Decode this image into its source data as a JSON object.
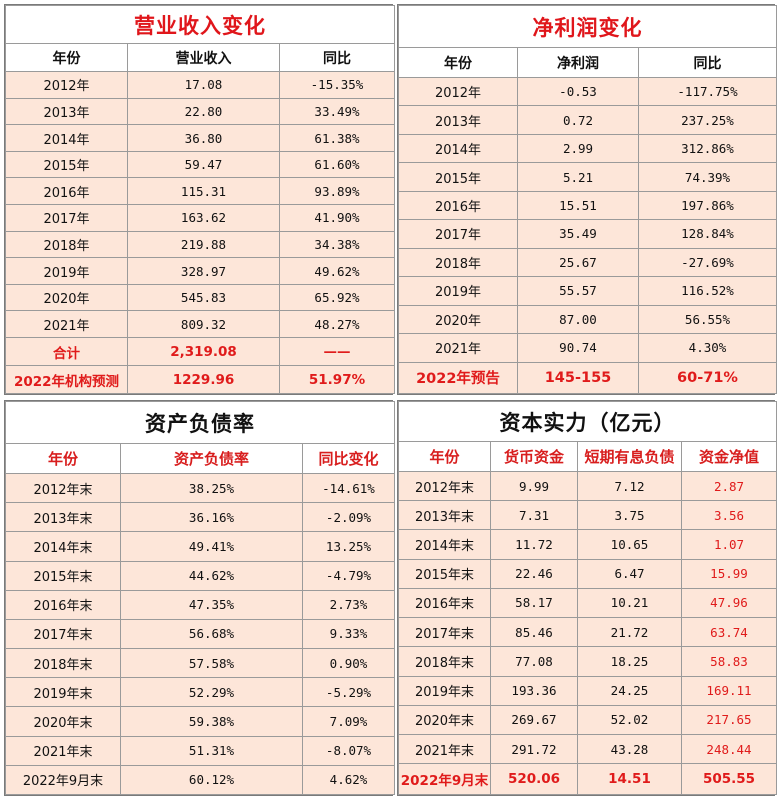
{
  "revenue": {
    "title": "营业收入变化",
    "headers": [
      "年份",
      "营业收入",
      "同比"
    ],
    "rows": [
      [
        "2012年",
        "17.08",
        "-15.35%"
      ],
      [
        "2013年",
        "22.80",
        "33.49%"
      ],
      [
        "2014年",
        "36.80",
        "61.38%"
      ],
      [
        "2015年",
        "59.47",
        "61.60%"
      ],
      [
        "2016年",
        "115.31",
        "93.89%"
      ],
      [
        "2017年",
        "163.62",
        "41.90%"
      ],
      [
        "2018年",
        "219.88",
        "34.38%"
      ],
      [
        "2019年",
        "328.97",
        "49.62%"
      ],
      [
        "2020年",
        "545.83",
        "65.92%"
      ],
      [
        "2021年",
        "809.32",
        "48.27%"
      ]
    ],
    "summary": [
      [
        "合计",
        "2,319.08",
        "——"
      ],
      [
        "2022年机构预测",
        "1229.96",
        "51.97%"
      ]
    ]
  },
  "net_profit": {
    "title": "净利润变化",
    "headers": [
      "年份",
      "净利润",
      "同比"
    ],
    "rows": [
      [
        "2012年",
        "-0.53",
        "-117.75%"
      ],
      [
        "2013年",
        "0.72",
        "237.25%"
      ],
      [
        "2014年",
        "2.99",
        "312.86%"
      ],
      [
        "2015年",
        "5.21",
        "74.39%"
      ],
      [
        "2016年",
        "15.51",
        "197.86%"
      ],
      [
        "2017年",
        "35.49",
        "128.84%"
      ],
      [
        "2018年",
        "25.67",
        "-27.69%"
      ],
      [
        "2019年",
        "55.57",
        "116.52%"
      ],
      [
        "2020年",
        "87.00",
        "56.55%"
      ],
      [
        "2021年",
        "90.74",
        "4.30%"
      ]
    ],
    "summary": [
      [
        "2022年预告",
        "145-155",
        "60-71%"
      ]
    ]
  },
  "debt_ratio": {
    "title": "资产负债率",
    "headers": [
      "年份",
      "资产负债率",
      "同比变化"
    ],
    "rows": [
      [
        "2012年末",
        "38.25%",
        "-14.61%"
      ],
      [
        "2013年末",
        "36.16%",
        "-2.09%"
      ],
      [
        "2014年末",
        "49.41%",
        "13.25%"
      ],
      [
        "2015年末",
        "44.62%",
        "-4.79%"
      ],
      [
        "2016年末",
        "47.35%",
        "2.73%"
      ],
      [
        "2017年末",
        "56.68%",
        "9.33%"
      ],
      [
        "2018年末",
        "57.58%",
        "0.90%"
      ],
      [
        "2019年末",
        "52.29%",
        "-5.29%"
      ],
      [
        "2020年末",
        "59.38%",
        "7.09%"
      ],
      [
        "2021年末",
        "51.31%",
        "-8.07%"
      ],
      [
        "2022年9月末",
        "60.12%",
        "4.62%"
      ]
    ]
  },
  "capital": {
    "title": "资本实力（亿元）",
    "headers": [
      "年份",
      "货币资金",
      "短期有息负债",
      "资金净值"
    ],
    "rows": [
      [
        "2012年末",
        "9.99",
        "7.12",
        "2.87"
      ],
      [
        "2013年末",
        "7.31",
        "3.75",
        "3.56"
      ],
      [
        "2014年末",
        "11.72",
        "10.65",
        "1.07"
      ],
      [
        "2015年末",
        "22.46",
        "6.47",
        "15.99"
      ],
      [
        "2016年末",
        "58.17",
        "10.21",
        "47.96"
      ],
      [
        "2017年末",
        "85.46",
        "21.72",
        "63.74"
      ],
      [
        "2018年末",
        "77.08",
        "18.25",
        "58.83"
      ],
      [
        "2019年末",
        "193.36",
        "24.25",
        "169.11"
      ],
      [
        "2020年末",
        "269.67",
        "52.02",
        "217.65"
      ],
      [
        "2021年末",
        "291.72",
        "43.28",
        "248.44"
      ]
    ],
    "summary": [
      [
        "2022年9月末",
        "520.06",
        "14.51",
        "505.55"
      ]
    ]
  }
}
